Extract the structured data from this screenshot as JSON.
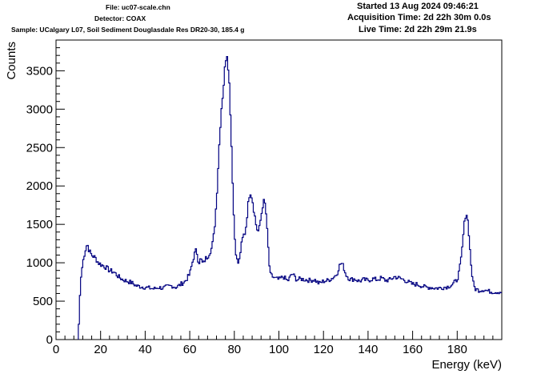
{
  "header": {
    "file": "File: uc07-scale.chn",
    "detector": "Detector: COAX",
    "sample": "Sample: UCalgary L07, Soil Sediment Douglasdale Res DR20-30, 185.4 g",
    "started": "Started 13 Aug 2024 09:46:21",
    "acquisition_time": "Acquisition Time: 2d 22h 30m 0.0s",
    "live_time": "Live Time: 2d 22h 29m 21.9s"
  },
  "colors": {
    "series": "#000080",
    "axis": "#000000",
    "background": "#ffffff"
  },
  "chart_data": {
    "type": "line",
    "style": "step histogram",
    "xlabel": "Energy (keV)",
    "ylabel": "Counts",
    "xlim": [
      0,
      200
    ],
    "ylim": [
      0,
      3900
    ],
    "grid": false,
    "xticks": [
      0,
      20,
      40,
      60,
      80,
      100,
      120,
      140,
      160,
      180
    ],
    "yticks": [
      0,
      500,
      1000,
      1500,
      2000,
      2500,
      3000,
      3500
    ],
    "series": [
      {
        "points": [
          [
            10,
            0
          ],
          [
            10.5,
            400
          ],
          [
            11,
            750
          ],
          [
            12,
            1000
          ],
          [
            13,
            1150
          ],
          [
            14,
            1250
          ],
          [
            15,
            1150
          ],
          [
            16,
            1100
          ],
          [
            17,
            1080
          ],
          [
            18,
            1050
          ],
          [
            19,
            1000
          ],
          [
            20,
            980
          ],
          [
            22,
            950
          ],
          [
            24,
            900
          ],
          [
            26,
            880
          ],
          [
            28,
            820
          ],
          [
            30,
            780
          ],
          [
            32,
            760
          ],
          [
            34,
            740
          ],
          [
            36,
            700
          ],
          [
            38,
            690
          ],
          [
            40,
            680
          ],
          [
            42,
            670
          ],
          [
            44,
            660
          ],
          [
            46,
            680
          ],
          [
            48,
            670
          ],
          [
            50,
            690
          ],
          [
            52,
            700
          ],
          [
            54,
            680
          ],
          [
            56,
            720
          ],
          [
            58,
            760
          ],
          [
            60,
            850
          ],
          [
            61,
            980
          ],
          [
            62,
            1100
          ],
          [
            63,
            1170
          ],
          [
            64,
            1000
          ],
          [
            65,
            1050
          ],
          [
            66,
            980
          ],
          [
            67,
            1050
          ],
          [
            68,
            1080
          ],
          [
            70,
            1200
          ],
          [
            71,
            1400
          ],
          [
            72,
            1800
          ],
          [
            73,
            2400
          ],
          [
            74,
            2950
          ],
          [
            75,
            3250
          ],
          [
            76,
            3600
          ],
          [
            76.5,
            3760
          ],
          [
            77,
            3700
          ],
          [
            78,
            3200
          ],
          [
            79,
            2300
          ],
          [
            80,
            1400
          ],
          [
            81,
            1050
          ],
          [
            82,
            980
          ],
          [
            83,
            1200
          ],
          [
            84,
            1350
          ],
          [
            85,
            1400
          ],
          [
            86,
            1700
          ],
          [
            87,
            1950
          ],
          [
            88,
            1850
          ],
          [
            89,
            1650
          ],
          [
            90,
            1450
          ],
          [
            91,
            1400
          ],
          [
            92,
            1600
          ],
          [
            93,
            1800
          ],
          [
            94,
            1750
          ],
          [
            95,
            1300
          ],
          [
            96,
            850
          ],
          [
            98,
            800
          ],
          [
            100,
            780
          ],
          [
            102,
            820
          ],
          [
            104,
            760
          ],
          [
            106,
            860
          ],
          [
            108,
            780
          ],
          [
            110,
            790
          ],
          [
            112,
            780
          ],
          [
            114,
            770
          ],
          [
            116,
            780
          ],
          [
            118,
            730
          ],
          [
            120,
            760
          ],
          [
            122,
            770
          ],
          [
            124,
            800
          ],
          [
            126,
            850
          ],
          [
            127,
            950
          ],
          [
            128,
            1000
          ],
          [
            129,
            950
          ],
          [
            130,
            850
          ],
          [
            132,
            780
          ],
          [
            134,
            790
          ],
          [
            136,
            760
          ],
          [
            138,
            780
          ],
          [
            140,
            770
          ],
          [
            142,
            790
          ],
          [
            144,
            780
          ],
          [
            146,
            800
          ],
          [
            148,
            770
          ],
          [
            150,
            780
          ],
          [
            152,
            820
          ],
          [
            154,
            800
          ],
          [
            156,
            780
          ],
          [
            158,
            750
          ],
          [
            160,
            720
          ],
          [
            162,
            720
          ],
          [
            164,
            700
          ],
          [
            166,
            680
          ],
          [
            168,
            680
          ],
          [
            170,
            670
          ],
          [
            172,
            670
          ],
          [
            174,
            680
          ],
          [
            176,
            690
          ],
          [
            178,
            720
          ],
          [
            180,
            780
          ],
          [
            181,
            900
          ],
          [
            182,
            1100
          ],
          [
            183,
            1450
          ],
          [
            184,
            1680
          ],
          [
            185,
            1500
          ],
          [
            186,
            1050
          ],
          [
            187,
            760
          ],
          [
            188,
            660
          ],
          [
            190,
            640
          ],
          [
            192,
            650
          ],
          [
            194,
            630
          ],
          [
            196,
            620
          ],
          [
            198,
            620
          ],
          [
            200,
            620
          ]
        ]
      }
    ]
  }
}
